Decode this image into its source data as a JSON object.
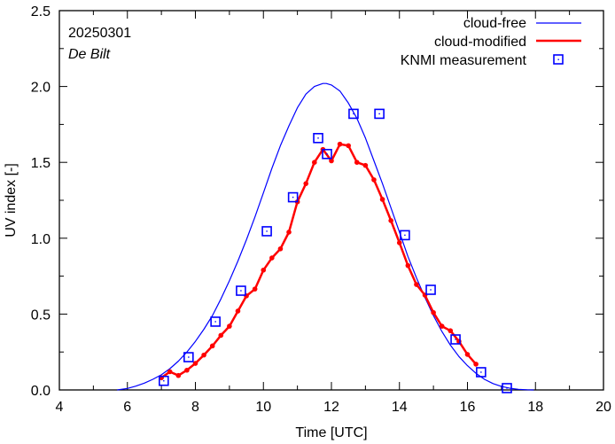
{
  "chart_data": {
    "type": "line",
    "title": "",
    "xlabel": "Time  [UTC]",
    "ylabel": "UV index  [-]",
    "xlim": [
      4,
      20
    ],
    "ylim": [
      0,
      2.5
    ],
    "x_ticks": [
      4,
      6,
      8,
      10,
      12,
      14,
      16,
      18,
      20
    ],
    "x_tick_labels": [
      "4",
      "6",
      "8",
      "10",
      "12",
      "14",
      "16",
      "18",
      "20"
    ],
    "y_ticks": [
      0,
      0.5,
      1.0,
      1.5,
      2.0,
      2.5
    ],
    "y_tick_labels": [
      "0.0",
      "0.5",
      "1.0",
      "1.5",
      "2.0",
      "2.5"
    ],
    "x_minor_step": 1,
    "y_minor_step": 0.25,
    "grid": false,
    "legend_position": "top-right",
    "annotations": {
      "date": "20250301",
      "location": "De Bilt"
    },
    "series": [
      {
        "name": "cloud-free",
        "style": "line",
        "color": "#0000ff",
        "x": [
          5.7,
          6.0,
          6.25,
          6.5,
          6.75,
          7.0,
          7.25,
          7.5,
          7.75,
          8.0,
          8.25,
          8.5,
          8.75,
          9.0,
          9.25,
          9.5,
          9.75,
          10.0,
          10.25,
          10.5,
          10.75,
          11.0,
          11.25,
          11.5,
          11.75,
          11.85,
          12.0,
          12.25,
          12.5,
          12.75,
          13.0,
          13.25,
          13.5,
          13.75,
          14.0,
          14.25,
          14.5,
          14.75,
          15.0,
          15.25,
          15.5,
          15.75,
          16.0,
          16.25,
          16.5,
          16.75,
          17.0,
          17.25,
          17.5,
          17.75,
          17.95
        ],
        "y": [
          0.0,
          0.01,
          0.025,
          0.045,
          0.07,
          0.1,
          0.14,
          0.19,
          0.25,
          0.32,
          0.4,
          0.49,
          0.6,
          0.72,
          0.85,
          0.99,
          1.14,
          1.3,
          1.46,
          1.61,
          1.74,
          1.86,
          1.95,
          2.0,
          2.02,
          2.02,
          2.01,
          1.97,
          1.89,
          1.79,
          1.66,
          1.51,
          1.36,
          1.2,
          1.04,
          0.88,
          0.74,
          0.61,
          0.49,
          0.385,
          0.295,
          0.22,
          0.16,
          0.11,
          0.07,
          0.042,
          0.023,
          0.011,
          0.004,
          0.001,
          0.0
        ]
      },
      {
        "name": "cloud-modified",
        "style": "line-points",
        "color": "#ff0000",
        "x": [
          7.0,
          7.25,
          7.5,
          7.75,
          8.0,
          8.25,
          8.5,
          8.75,
          9.0,
          9.25,
          9.5,
          9.75,
          10.0,
          10.25,
          10.5,
          10.75,
          11.0,
          11.25,
          11.5,
          11.75,
          12.0,
          12.25,
          12.5,
          12.75,
          13.0,
          13.25,
          13.5,
          13.75,
          14.0,
          14.25,
          14.5,
          14.75,
          15.0,
          15.25,
          15.5,
          15.75,
          16.0,
          16.25
        ],
        "y": [
          0.08,
          0.12,
          0.095,
          0.13,
          0.175,
          0.23,
          0.29,
          0.36,
          0.42,
          0.52,
          0.62,
          0.665,
          0.79,
          0.87,
          0.93,
          1.04,
          1.24,
          1.36,
          1.5,
          1.585,
          1.51,
          1.62,
          1.61,
          1.5,
          1.48,
          1.385,
          1.256,
          1.116,
          0.97,
          0.82,
          0.695,
          0.625,
          0.51,
          0.42,
          0.39,
          0.32,
          0.234,
          0.17
        ]
      },
      {
        "name": "KNMI measurement",
        "style": "markers",
        "color": "#0000ff",
        "x": [
          7.07,
          7.8,
          8.59,
          9.34,
          10.1,
          10.87,
          11.61,
          11.87,
          12.65,
          13.41,
          14.16,
          14.92,
          15.65,
          16.4,
          17.16
        ],
        "y": [
          0.06,
          0.216,
          0.45,
          0.654,
          1.046,
          1.27,
          1.66,
          1.555,
          1.82,
          1.82,
          1.02,
          0.66,
          0.333,
          0.117,
          0.012
        ]
      }
    ]
  }
}
